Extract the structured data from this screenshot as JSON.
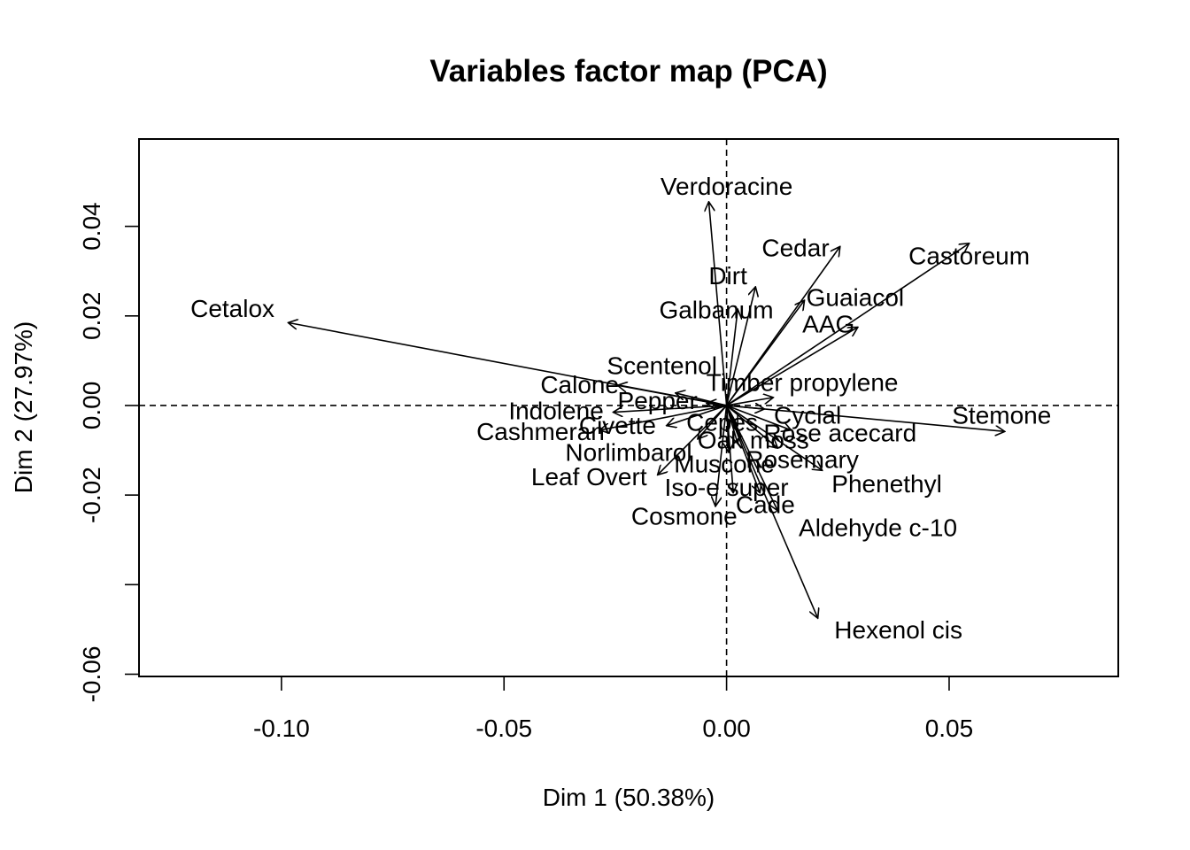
{
  "chart_data": {
    "type": "scatter",
    "title": "Variables factor map (PCA)",
    "xlabel": "Dim 1 (50.38%)",
    "ylabel": "Dim 2 (27.97%)",
    "xlim": [
      -0.132,
      0.088
    ],
    "ylim": [
      -0.0605,
      0.0595
    ],
    "x_ticks": [
      -0.1,
      -0.05,
      0.0,
      0.05
    ],
    "x_tick_labels": [
      "-0.10",
      "-0.05",
      "0.00",
      "0.05"
    ],
    "y_ticks": [
      -0.06,
      -0.04,
      -0.02,
      0.0,
      0.02,
      0.04
    ],
    "y_tick_labels": [
      "-0.06",
      "",
      "-0.02",
      "0.00",
      "0.02",
      "0.04"
    ],
    "reference_lines": {
      "x": 0,
      "y": 0,
      "style": "dashed"
    },
    "grid": false,
    "variables": [
      {
        "name": "Verdoracine",
        "x": -0.004,
        "y": 0.0455,
        "label_x": 0.0,
        "label_y": 0.0485
      },
      {
        "name": "Cedar",
        "x": 0.0255,
        "y": 0.0355,
        "label_x": 0.0155,
        "label_y": 0.0348
      },
      {
        "name": "Castoreum",
        "x": 0.0545,
        "y": 0.0362,
        "label_x": 0.0545,
        "label_y": 0.033
      },
      {
        "name": "Dirt",
        "x": 0.0065,
        "y": 0.0265,
        "label_x": 0.0003,
        "label_y": 0.0285
      },
      {
        "name": "Guaiacol",
        "x": 0.0175,
        "y": 0.0235,
        "label_x": 0.0289,
        "label_y": 0.0237
      },
      {
        "name": "Galbanum",
        "x": 0.0025,
        "y": 0.0215,
        "label_x": -0.0023,
        "label_y": 0.0209
      },
      {
        "name": "AAG",
        "x": 0.0295,
        "y": 0.0175,
        "label_x": 0.0229,
        "label_y": 0.0178
      },
      {
        "name": "Cetalox",
        "x": -0.0985,
        "y": 0.0185,
        "label_x": -0.111,
        "label_y": 0.0212
      },
      {
        "name": "Scentenol",
        "x": -0.0115,
        "y": 0.0028,
        "label_x": -0.0145,
        "label_y": 0.0085
      },
      {
        "name": "Timber propylene",
        "x": 0.0105,
        "y": 0.0018,
        "label_x": 0.017,
        "label_y": 0.0047
      },
      {
        "name": "Calone",
        "x": -0.0245,
        "y": 0.0045,
        "label_x": -0.033,
        "label_y": 0.0042
      },
      {
        "name": "Pepper",
        "x": -0.0045,
        "y": 0.0005,
        "label_x": -0.0155,
        "label_y": 0.0007
      },
      {
        "name": "Indolene",
        "x": -0.0255,
        "y": -0.0015,
        "label_x": -0.0383,
        "label_y": -0.0016
      },
      {
        "name": "Cyclal",
        "x": 0.0085,
        "y": -0.0008,
        "label_x": 0.0182,
        "label_y": -0.0026
      },
      {
        "name": "Stemone",
        "x": 0.0625,
        "y": -0.0058,
        "label_x": 0.0618,
        "label_y": -0.0026
      },
      {
        "name": "Civette",
        "x": -0.0135,
        "y": -0.0045,
        "label_x": -0.0245,
        "label_y": -0.0049
      },
      {
        "name": "Cepes",
        "x": 0.0025,
        "y": -0.0045,
        "label_x": -0.001,
        "label_y": -0.0042
      },
      {
        "name": "Cashmeran",
        "x": -0.0285,
        "y": -0.0055,
        "label_x": -0.0418,
        "label_y": -0.0063
      },
      {
        "name": "Rose acecard",
        "x": 0.0145,
        "y": -0.0055,
        "label_x": 0.0255,
        "label_y": -0.0066
      },
      {
        "name": "Oak moss",
        "x": 0.0025,
        "y": -0.0085,
        "label_x": 0.006,
        "label_y": -0.0081
      },
      {
        "name": "Norlimbarol",
        "x": -0.0065,
        "y": -0.0075,
        "label_x": -0.022,
        "label_y": -0.0109
      },
      {
        "name": "Muscone",
        "x": 0.0005,
        "y": -0.0105,
        "label_x": -0.0005,
        "label_y": -0.0135
      },
      {
        "name": "Rosemary",
        "x": 0.0115,
        "y": -0.0095,
        "label_x": 0.017,
        "label_y": -0.0125
      },
      {
        "name": "Leaf Overt",
        "x": -0.0155,
        "y": -0.0155,
        "label_x": -0.0309,
        "label_y": -0.0163
      },
      {
        "name": "Phenethyl",
        "x": 0.0215,
        "y": -0.0145,
        "label_x": 0.036,
        "label_y": -0.0179
      },
      {
        "name": "Iso-e super",
        "x": 0.0015,
        "y": -0.0195,
        "label_x": 0.0,
        "label_y": -0.0187
      },
      {
        "name": "Cade",
        "x": 0.0075,
        "y": -0.0195,
        "label_x": 0.0087,
        "label_y": -0.0226
      },
      {
        "name": "Cosmone",
        "x": -0.0025,
        "y": -0.0225,
        "label_x": -0.0095,
        "label_y": -0.0251
      },
      {
        "name": "Aldehyde c-10",
        "x": 0.0115,
        "y": -0.0235,
        "label_x": 0.034,
        "label_y": -0.0277
      },
      {
        "name": "Hexenol cis",
        "x": 0.0205,
        "y": -0.0475,
        "label_x": 0.0386,
        "label_y": -0.0505
      }
    ]
  }
}
